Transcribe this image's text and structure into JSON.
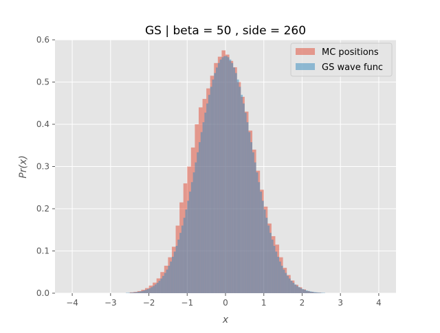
{
  "chart_data": {
    "type": "bar",
    "title": "GS | beta = 50 , side = 260",
    "xlabel": "x",
    "ylabel": "Pr(x)",
    "xlim": [
      -4.45,
      4.45
    ],
    "ylim": [
      0,
      0.6
    ],
    "xticks": [
      -4,
      -3,
      -2,
      -1,
      0,
      1,
      2,
      3,
      4
    ],
    "yticks": [
      0.0,
      0.1,
      0.2,
      0.3,
      0.4,
      0.5,
      0.6
    ],
    "xtick_labels": [
      "−4",
      "−3",
      "−2",
      "−1",
      "0",
      "1",
      "2",
      "3",
      "4"
    ],
    "ytick_labels": [
      "0.0",
      "0.1",
      "0.2",
      "0.3",
      "0.4",
      "0.5",
      "0.6"
    ],
    "grid": true,
    "legend": {
      "placement": "top-right"
    },
    "series": [
      {
        "name": "MC positions",
        "color": "#E24A33",
        "alpha": 0.5,
        "bins": [
          [
            -2.5,
            -2.4,
            0.002
          ],
          [
            -2.4,
            -2.3,
            0.003
          ],
          [
            -2.3,
            -2.2,
            0.005
          ],
          [
            -2.2,
            -2.1,
            0.008
          ],
          [
            -2.1,
            -2.0,
            0.012
          ],
          [
            -2.0,
            -1.9,
            0.018
          ],
          [
            -1.9,
            -1.8,
            0.025
          ],
          [
            -1.8,
            -1.7,
            0.035
          ],
          [
            -1.7,
            -1.6,
            0.05
          ],
          [
            -1.6,
            -1.5,
            0.065
          ],
          [
            -1.5,
            -1.4,
            0.085
          ],
          [
            -1.4,
            -1.3,
            0.11
          ],
          [
            -1.3,
            -1.2,
            0.16
          ],
          [
            -1.2,
            -1.1,
            0.215
          ],
          [
            -1.1,
            -1.0,
            0.26
          ],
          [
            -1.0,
            -0.9,
            0.3
          ],
          [
            -0.9,
            -0.8,
            0.345
          ],
          [
            -0.8,
            -0.7,
            0.4
          ],
          [
            -0.7,
            -0.6,
            0.44
          ],
          [
            -0.6,
            -0.5,
            0.46
          ],
          [
            -0.5,
            -0.4,
            0.485
          ],
          [
            -0.4,
            -0.3,
            0.515
          ],
          [
            -0.3,
            -0.2,
            0.545
          ],
          [
            -0.2,
            -0.1,
            0.56
          ],
          [
            -0.1,
            0.0,
            0.575
          ],
          [
            0.0,
            0.1,
            0.565
          ],
          [
            0.1,
            0.2,
            0.55
          ],
          [
            0.2,
            0.3,
            0.535
          ],
          [
            0.3,
            0.4,
            0.5
          ],
          [
            0.4,
            0.5,
            0.465
          ],
          [
            0.5,
            0.6,
            0.43
          ],
          [
            0.6,
            0.7,
            0.385
          ],
          [
            0.7,
            0.8,
            0.34
          ],
          [
            0.8,
            0.9,
            0.29
          ],
          [
            0.9,
            1.0,
            0.245
          ],
          [
            1.0,
            1.1,
            0.205
          ],
          [
            1.1,
            1.2,
            0.165
          ],
          [
            1.2,
            1.3,
            0.135
          ],
          [
            1.3,
            1.4,
            0.115
          ],
          [
            1.4,
            1.5,
            0.085
          ],
          [
            1.5,
            1.6,
            0.06
          ],
          [
            1.6,
            1.7,
            0.043
          ],
          [
            1.7,
            1.8,
            0.03
          ],
          [
            1.8,
            1.9,
            0.02
          ],
          [
            1.9,
            2.0,
            0.014
          ],
          [
            2.0,
            2.1,
            0.009
          ],
          [
            2.1,
            2.2,
            0.005
          ],
          [
            2.2,
            2.3,
            0.003
          ],
          [
            2.3,
            2.4,
            0.0015
          ],
          [
            2.4,
            2.5,
            0.001
          ]
        ]
      },
      {
        "name": "GS wave func",
        "color": "#348ABD",
        "alpha": 0.5,
        "gaussian": {
          "mean": 0.0,
          "sigma": 0.71,
          "bin_width": 0.05,
          "x_min": -2.6,
          "x_max": 2.6
        }
      }
    ]
  }
}
